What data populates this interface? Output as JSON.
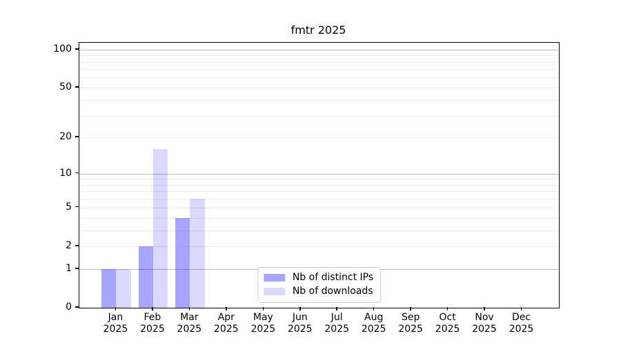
{
  "chart_data": {
    "type": "bar",
    "title": "fmtr 2025",
    "categories": [
      "Jan",
      "Feb",
      "Mar",
      "Apr",
      "May",
      "Jun",
      "Jul",
      "Aug",
      "Sep",
      "Oct",
      "Nov",
      "Dec"
    ],
    "x_tick_year": "2025",
    "series": [
      {
        "name": "Nb of distinct IPs",
        "color": "#0000ff",
        "alpha": 0.35,
        "values": [
          1,
          2,
          4,
          0,
          0,
          0,
          0,
          0,
          0,
          0,
          0,
          0
        ]
      },
      {
        "name": "Nb of downloads",
        "color": "#0000ff",
        "alpha": 0.15,
        "values": [
          1,
          16,
          6,
          0,
          0,
          0,
          0,
          0,
          0,
          0,
          0,
          0
        ]
      }
    ],
    "y_scale": "log10(1+v)",
    "ylim": [
      0,
      113
    ],
    "y_ticks": [
      100,
      50,
      20,
      10,
      5,
      2,
      1,
      0
    ],
    "major_gridlines": [
      1,
      10,
      100
    ],
    "minor_gridlines": [
      2,
      3,
      4,
      5,
      6,
      7,
      8,
      9,
      20,
      30,
      40,
      50,
      60,
      70,
      80,
      90
    ],
    "grid_major_color": "#bdbdbd",
    "grid_minor_color": "#ececec",
    "legend": {
      "entries": [
        "Nb of distinct IPs",
        "Nb of downloads"
      ],
      "position": "lower center"
    }
  }
}
